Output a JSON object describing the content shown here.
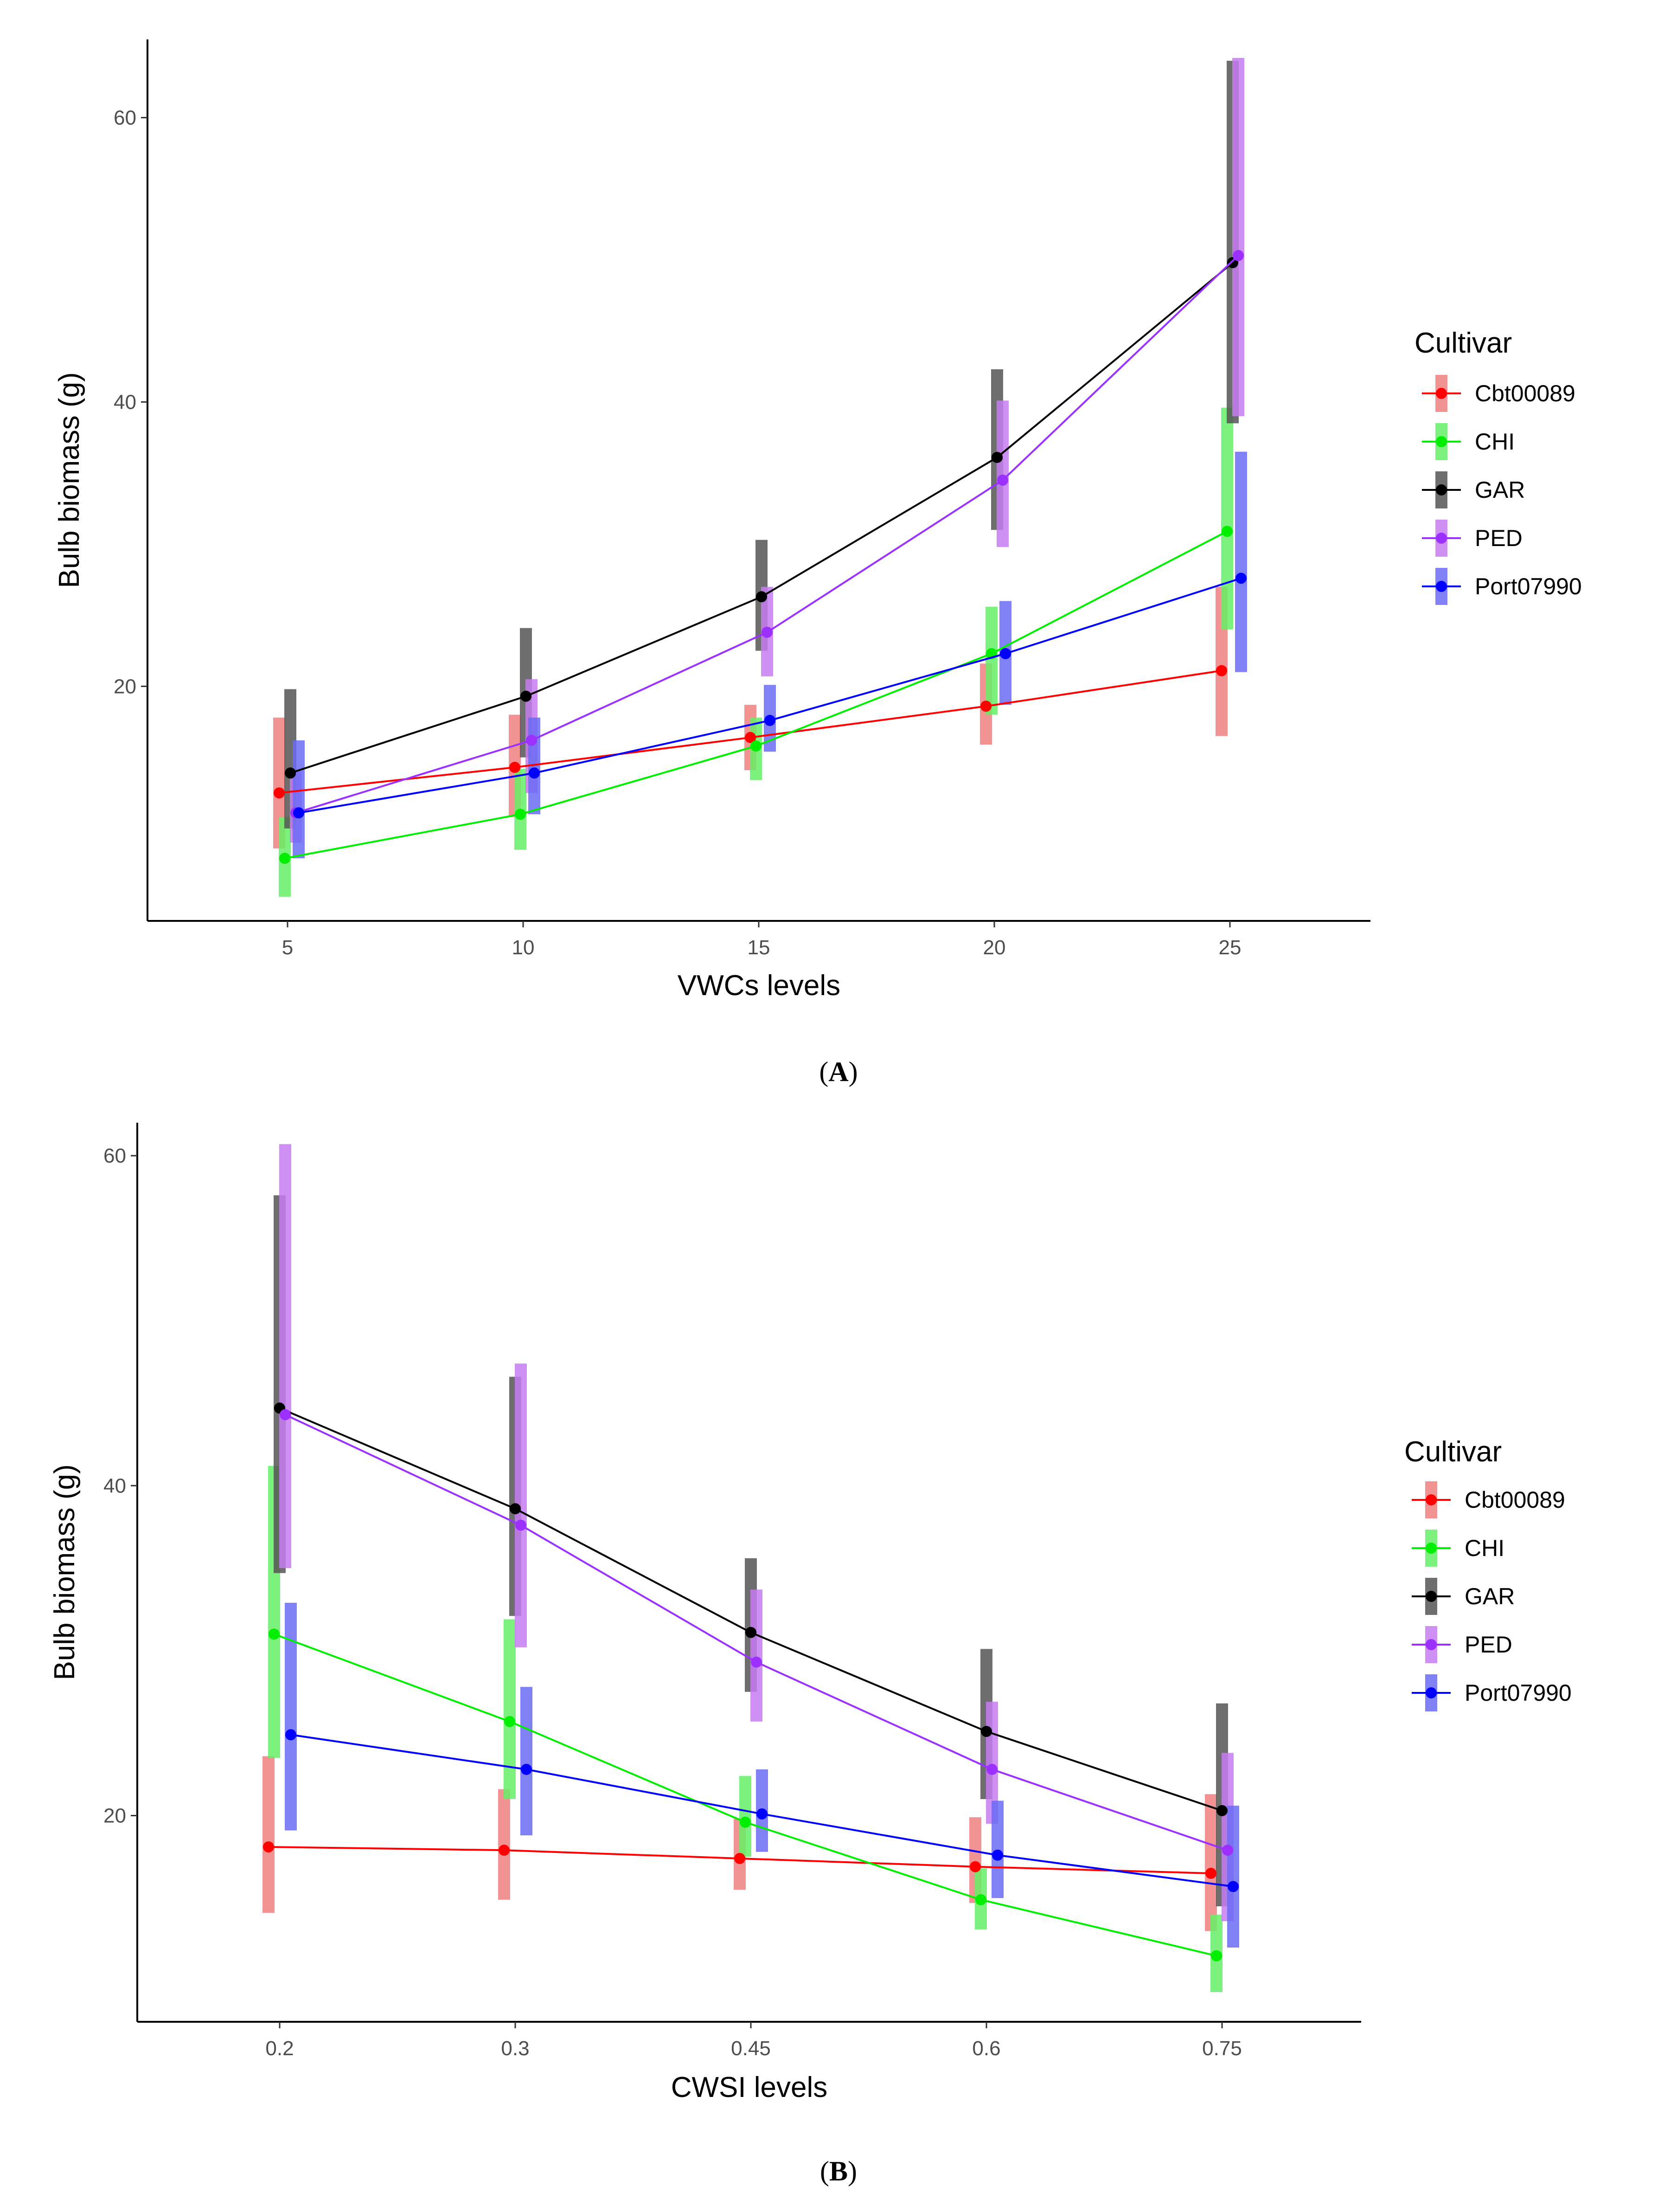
{
  "chart_data": [
    {
      "id": "A",
      "type": "line",
      "caption_letter": "A",
      "caption_open": "(",
      "caption_close": ")",
      "xlabel": "VWCs levels",
      "ylabel": "Bulb biomass (g)",
      "categories": [
        "5",
        "10",
        "15",
        "20",
        "25"
      ],
      "ylim": [
        3.5,
        65.5
      ],
      "yticks": [
        20,
        40,
        60
      ],
      "legend_title": "Cultivar",
      "series": [
        {
          "name": "Cbt00089",
          "color": "#ff0000",
          "band": "#f08080",
          "values": [
            12.5,
            14.3,
            16.4,
            18.6,
            21.1
          ],
          "lower": [
            8.6,
            10.8,
            14.1,
            15.9,
            16.5
          ],
          "upper": [
            17.8,
            18.0,
            18.7,
            21.6,
            27.0
          ]
        },
        {
          "name": "CHI",
          "color": "#00ee00",
          "band": "#66ee66",
          "values": [
            7.9,
            11.0,
            15.8,
            22.3,
            30.9
          ],
          "lower": [
            5.2,
            8.5,
            13.4,
            18.0,
            24.0
          ],
          "upper": [
            10.8,
            14.2,
            17.8,
            25.6,
            39.6
          ]
        },
        {
          "name": "GAR",
          "color": "#000000",
          "band": "#555555",
          "values": [
            13.9,
            19.3,
            26.3,
            36.1,
            49.8
          ],
          "lower": [
            10.0,
            15.0,
            22.5,
            31.0,
            38.5
          ],
          "upper": [
            19.8,
            24.1,
            30.3,
            42.3,
            64.0
          ]
        },
        {
          "name": "PED",
          "color": "#9b30ff",
          "band": "#c57cf0",
          "values": [
            11.1,
            16.2,
            23.8,
            34.5,
            50.3
          ],
          "lower": [
            9.0,
            12.5,
            20.7,
            29.8,
            39.0
          ],
          "upper": [
            14.0,
            20.5,
            27.0,
            40.1,
            64.2
          ]
        },
        {
          "name": "Port07990",
          "color": "#0000ff",
          "band": "#6b6bf5",
          "values": [
            11.1,
            13.9,
            17.6,
            22.3,
            27.6
          ],
          "lower": [
            7.9,
            11.0,
            15.4,
            18.7,
            21.0
          ],
          "upper": [
            16.2,
            17.8,
            20.1,
            26.0,
            36.5
          ]
        }
      ]
    },
    {
      "id": "B",
      "type": "line",
      "caption_letter": "B",
      "caption_open": "(",
      "caption_close": ")",
      "xlabel": "CWSI levels",
      "ylabel": "Bulb biomass (g)",
      "categories": [
        "0.2",
        "0.3",
        "0.45",
        "0.6",
        "0.75"
      ],
      "ylim": [
        7.5,
        62.0
      ],
      "yticks": [
        20,
        40,
        60
      ],
      "legend_title": "Cultivar",
      "series": [
        {
          "name": "Cbt00089",
          "color": "#ff0000",
          "band": "#f08080",
          "values": [
            18.1,
            17.9,
            17.4,
            16.9,
            16.5
          ],
          "lower": [
            14.1,
            14.9,
            15.5,
            14.7,
            13.0
          ],
          "upper": [
            23.6,
            21.6,
            19.8,
            19.9,
            21.3
          ]
        },
        {
          "name": "CHI",
          "color": "#00ee00",
          "band": "#66ee66",
          "values": [
            31.0,
            25.7,
            19.6,
            14.9,
            11.5
          ],
          "lower": [
            23.5,
            21.0,
            17.5,
            13.1,
            9.3
          ],
          "upper": [
            41.2,
            31.9,
            22.4,
            16.8,
            14.0
          ]
        },
        {
          "name": "GAR",
          "color": "#000000",
          "band": "#555555",
          "values": [
            44.7,
            38.6,
            31.1,
            25.1,
            20.3
          ],
          "lower": [
            34.7,
            32.1,
            27.5,
            21.0,
            14.5
          ],
          "upper": [
            57.6,
            46.6,
            35.6,
            30.1,
            26.8
          ]
        },
        {
          "name": "PED",
          "color": "#9b30ff",
          "band": "#c57cf0",
          "values": [
            44.3,
            37.6,
            29.3,
            22.8,
            17.9
          ],
          "lower": [
            35.0,
            30.2,
            25.7,
            19.5,
            13.6
          ],
          "upper": [
            60.7,
            47.4,
            33.7,
            26.9,
            23.8
          ]
        },
        {
          "name": "Port07990",
          "color": "#0000ff",
          "band": "#6b6bf5",
          "values": [
            24.9,
            22.8,
            20.1,
            17.6,
            15.7
          ],
          "lower": [
            19.1,
            18.8,
            17.8,
            15.0,
            12.0
          ],
          "upper": [
            32.9,
            27.8,
            22.8,
            20.9,
            20.6
          ]
        }
      ]
    }
  ]
}
